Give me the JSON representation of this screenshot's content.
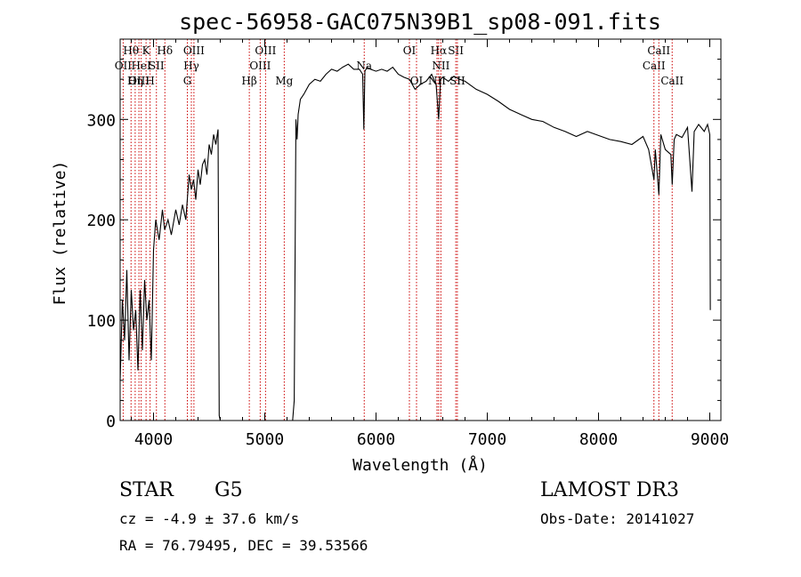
{
  "chart_data": {
    "type": "line",
    "title": "spec-56958-GAC075N39B1_sp08-091.fits",
    "xlabel": "Wavelength (Å)",
    "ylabel": "Flux (relative)",
    "xlim": [
      3700,
      9100
    ],
    "ylim": [
      0,
      380
    ],
    "x_ticks": [
      4000,
      5000,
      6000,
      7000,
      8000,
      9000
    ],
    "y_ticks": [
      0,
      100,
      200,
      300
    ],
    "grid": false,
    "line_color": "#000000",
    "marker_color": "#cc0000",
    "series": [
      {
        "name": "spectrum",
        "x": [
          3700,
          3720,
          3740,
          3760,
          3780,
          3800,
          3820,
          3840,
          3860,
          3880,
          3900,
          3920,
          3940,
          3960,
          3980,
          4000,
          4020,
          4050,
          4080,
          4100,
          4130,
          4160,
          4200,
          4230,
          4260,
          4290,
          4320,
          4340,
          4360,
          4380,
          4400,
          4420,
          4440,
          4460,
          4480,
          4500,
          4520,
          4540,
          4560,
          4580,
          4590,
          4600,
          4620,
          4700,
          4800,
          4900,
          5000,
          5100,
          5200,
          5250,
          5265,
          5280,
          5290,
          5300,
          5320,
          5350,
          5400,
          5450,
          5500,
          5550,
          5600,
          5650,
          5700,
          5750,
          5800,
          5850,
          5880,
          5890,
          5900,
          5920,
          5950,
          6000,
          6050,
          6100,
          6150,
          6200,
          6250,
          6300,
          6350,
          6400,
          6450,
          6500,
          6540,
          6563,
          6580,
          6600,
          6650,
          6700,
          6750,
          6800,
          6900,
          7000,
          7100,
          7200,
          7300,
          7400,
          7500,
          7600,
          7700,
          7800,
          7900,
          8000,
          8100,
          8200,
          8300,
          8400,
          8450,
          8498,
          8510,
          8542,
          8560,
          8600,
          8650,
          8662,
          8680,
          8700,
          8750,
          8800,
          8840,
          8860,
          8900,
          8950,
          8980,
          9000,
          9005
        ],
        "values": [
          40,
          120,
          80,
          150,
          60,
          130,
          90,
          110,
          50,
          130,
          70,
          140,
          100,
          120,
          60,
          170,
          200,
          180,
          210,
          190,
          200,
          185,
          210,
          195,
          215,
          200,
          245,
          230,
          240,
          220,
          250,
          235,
          255,
          260,
          245,
          275,
          265,
          285,
          275,
          290,
          5,
          0,
          0,
          0,
          0,
          0,
          0,
          0,
          0,
          0,
          20,
          300,
          280,
          305,
          320,
          325,
          335,
          340,
          338,
          345,
          350,
          348,
          352,
          355,
          350,
          350,
          345,
          290,
          348,
          352,
          350,
          348,
          350,
          348,
          352,
          345,
          342,
          340,
          330,
          335,
          338,
          345,
          335,
          300,
          340,
          342,
          338,
          343,
          340,
          338,
          330,
          325,
          318,
          310,
          305,
          300,
          298,
          292,
          288,
          283,
          288,
          284,
          280,
          278,
          275,
          283,
          270,
          240,
          270,
          225,
          285,
          270,
          265,
          235,
          280,
          285,
          282,
          292,
          228,
          288,
          295,
          288,
          295,
          285,
          110
        ]
      }
    ],
    "line_markers": [
      {
        "wl": 3727,
        "label": "OII",
        "tier": 2
      },
      {
        "wl": 3798,
        "label": "Hθ",
        "tier": 1
      },
      {
        "wl": 3835,
        "label": "Hη",
        "tier": 3
      },
      {
        "wl": 3869,
        "label": "OIII",
        "tier": 3
      },
      {
        "wl": 3889,
        "label": "HeI",
        "tier": 2
      },
      {
        "wl": 3933,
        "label": "K",
        "tier": 1
      },
      {
        "wl": 3969,
        "label": "H",
        "tier": 3
      },
      {
        "wl": 4026,
        "label": "SII",
        "tier": 2
      },
      {
        "wl": 4102,
        "label": "Hδ",
        "tier": 1
      },
      {
        "wl": 4304,
        "label": "G",
        "tier": 3
      },
      {
        "wl": 4340,
        "label": "Hγ",
        "tier": 2
      },
      {
        "wl": 4363,
        "label": "OIII",
        "tier": 1
      },
      {
        "wl": 4861,
        "label": "Hβ",
        "tier": 3
      },
      {
        "wl": 4959,
        "label": "OIII",
        "tier": 2
      },
      {
        "wl": 5007,
        "label": "OIII",
        "tier": 1
      },
      {
        "wl": 5175,
        "label": "Mg",
        "tier": 3
      },
      {
        "wl": 5894,
        "label": "Na",
        "tier": 2
      },
      {
        "wl": 6300,
        "label": "OI",
        "tier": 1
      },
      {
        "wl": 6364,
        "label": "OI",
        "tier": 3
      },
      {
        "wl": 6548,
        "label": "NII",
        "tier": 3
      },
      {
        "wl": 6563,
        "label": "Hα",
        "tier": 1
      },
      {
        "wl": 6583,
        "label": "NII",
        "tier": 2
      },
      {
        "wl": 6717,
        "label": "SII",
        "tier": 1
      },
      {
        "wl": 6731,
        "label": "SII",
        "tier": 3
      },
      {
        "wl": 8498,
        "label": "CaII",
        "tier": 2
      },
      {
        "wl": 8542,
        "label": "CaII",
        "tier": 1
      },
      {
        "wl": 8662,
        "label": "CaII",
        "tier": 3
      }
    ]
  },
  "info": {
    "class_label": "STAR",
    "subclass": "G5",
    "cz_line": "cz = -4.9 ± 37.6 km/s",
    "coords_line": "RA =  76.79495, DEC =  39.53566",
    "survey": "LAMOST DR3",
    "obs_date": "Obs-Date: 20141027"
  }
}
